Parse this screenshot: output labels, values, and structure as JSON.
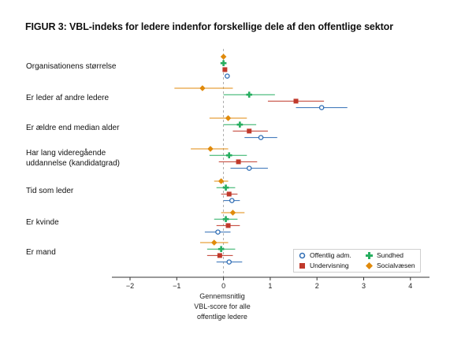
{
  "title": "FIGUR 3: VBL-indeks  for ledere indenfor forskellige dele af den offentlige sektor",
  "x_caption": [
    "Gennemsnitlig",
    "VBL-score for alle",
    "offentlige ledere"
  ],
  "colors": {
    "Offentlig adm.": "#2f6db5",
    "Undervisning": "#c0392b",
    "Sundhed": "#27ae60",
    "Socialvæsen": "#e08a0b"
  },
  "chart_data": {
    "type": "scatter",
    "title": "FIGUR 3: VBL-indeks  for ledere indenfor forskellige dele af den offentlige sektor",
    "xlabel": "Gennemsnitlig VBL-score for alle offentlige ledere",
    "xlim": [
      -2.3,
      4.3
    ],
    "xticks": [
      "−2",
      "−1",
      "0",
      "1",
      "2",
      "3",
      "4"
    ],
    "xtick_values": [
      -2,
      -1,
      0,
      1,
      2,
      3,
      4
    ],
    "reference_line_x": 0,
    "legend_position": "bottom-right",
    "categories": [
      "Organisationens størrelse",
      "Er leder af andre ledere",
      "Er ældre end median alder",
      "Har lang videregående uddannelse (kandidatgrad)",
      "Tid som leder",
      "Er kvinde",
      "Er mand"
    ],
    "category_lines": [
      [
        "Organisationens størrelse"
      ],
      [
        "Er leder af andre ledere"
      ],
      [
        "Er ældre end median alder"
      ],
      [
        "Har lang videregående",
        "uddannelse (kandidatgrad)"
      ],
      [
        "Tid som leder"
      ],
      [
        "Er kvinde"
      ],
      [
        "Er mand"
      ]
    ],
    "series": [
      {
        "name": "Socialvæsen",
        "marker": "diamond",
        "values": [
          0.0,
          -0.45,
          0.1,
          -0.28,
          -0.05,
          0.2,
          -0.2
        ],
        "ci": [
          [
            -0.05,
            0.05
          ],
          [
            -1.05,
            0.2
          ],
          [
            -0.3,
            0.5
          ],
          [
            -0.7,
            0.1
          ],
          [
            -0.2,
            0.1
          ],
          [
            -0.05,
            0.45
          ],
          [
            -0.5,
            0.1
          ]
        ]
      },
      {
        "name": "Sundhed",
        "marker": "plus",
        "values": [
          0.0,
          0.55,
          0.35,
          0.12,
          0.05,
          0.05,
          -0.05
        ],
        "ci": [
          [
            -0.03,
            0.03
          ],
          [
            0.0,
            1.1
          ],
          [
            0.0,
            0.7
          ],
          [
            -0.3,
            0.5
          ],
          [
            -0.15,
            0.25
          ],
          [
            -0.2,
            0.3
          ],
          [
            -0.35,
            0.25
          ]
        ]
      },
      {
        "name": "Undervisning",
        "marker": "square",
        "values": [
          0.03,
          1.55,
          0.55,
          0.32,
          0.12,
          0.1,
          -0.08
        ],
        "ci": [
          [
            0.0,
            0.07
          ],
          [
            0.95,
            2.15
          ],
          [
            0.2,
            0.95
          ],
          [
            -0.1,
            0.72
          ],
          [
            -0.05,
            0.3
          ],
          [
            -0.15,
            0.35
          ],
          [
            -0.35,
            0.2
          ]
        ]
      },
      {
        "name": "Offentlig adm.",
        "marker": "circle",
        "values": [
          0.08,
          2.1,
          0.8,
          0.55,
          0.18,
          -0.12,
          0.12
        ],
        "ci": [
          [
            0.05,
            0.12
          ],
          [
            1.55,
            2.65
          ],
          [
            0.45,
            1.15
          ],
          [
            0.15,
            0.95
          ],
          [
            0.0,
            0.35
          ],
          [
            -0.4,
            0.15
          ],
          [
            -0.15,
            0.4
          ]
        ]
      }
    ],
    "legend_order": [
      "Offentlig adm.",
      "Sundhed",
      "Undervisning",
      "Socialvæsen"
    ]
  }
}
